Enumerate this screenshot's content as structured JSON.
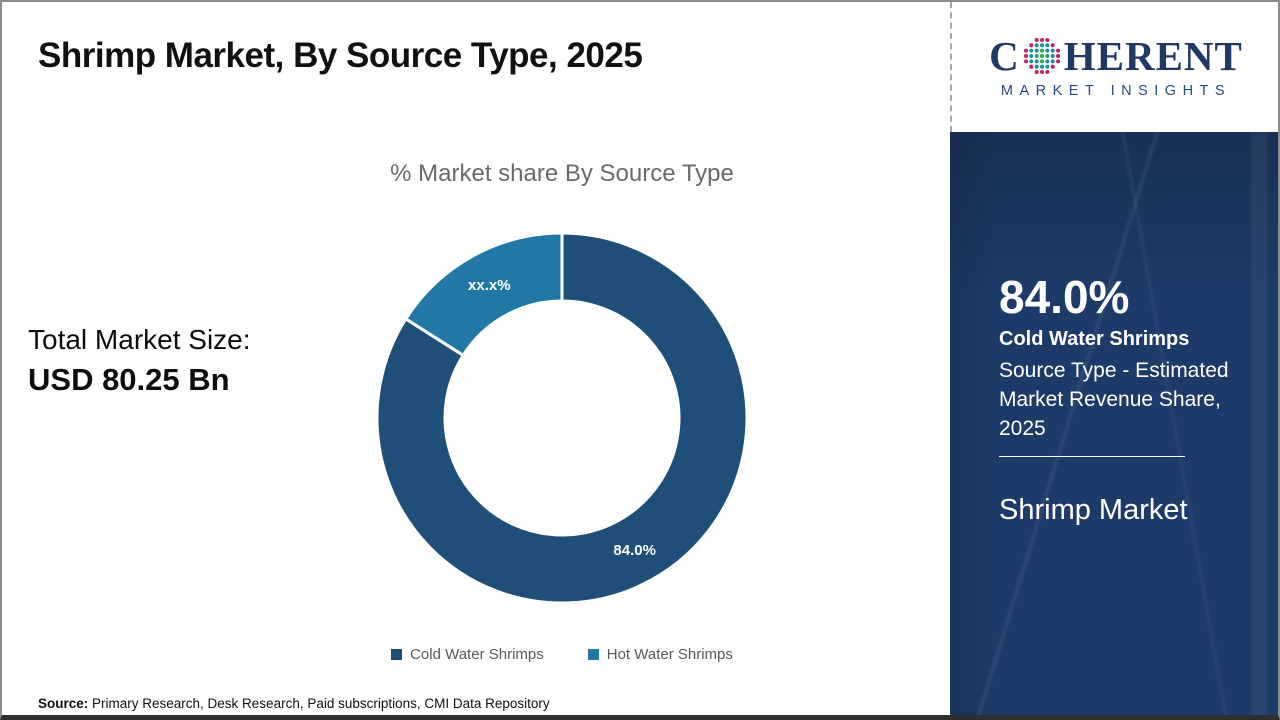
{
  "page": {
    "title": "Shrimp Market, By Source Type, 2025"
  },
  "total_market": {
    "label": "Total Market Size:",
    "value": "USD 80.25 Bn"
  },
  "chart_data": {
    "type": "pie",
    "donut": true,
    "title": "% Market share By Source Type",
    "inner_radius_ratio": 0.63,
    "start_angle_deg": 0,
    "direction": "clockwise",
    "legend_position": "bottom",
    "segments": [
      {
        "label": "Cold Water Shrimps",
        "value": 84.0,
        "display": "84.0%",
        "color": "#1F4E79"
      },
      {
        "label": "Hot Water Shrimps",
        "value": 16.0,
        "display": "xx.x%",
        "color": "#2278A5"
      }
    ]
  },
  "source": {
    "label": "Source:",
    "text": " Primary Research, Desk Research, Paid subscriptions, CMI Data Repository"
  },
  "logo": {
    "part1": "C",
    "part2": "HERENT",
    "subtitle": "MARKET INSIGHTS",
    "globe_icon": "dotted-globe",
    "navy": "#1F3864",
    "dot_colors": {
      "center": "#2FA64D",
      "middle": "#17949B",
      "outer": "#C01E5F"
    }
  },
  "sidebar": {
    "stat_value": "84.0%",
    "stat_label": "Cold Water Shrimps",
    "stat_desc": "Source Type - Estimated Market Revenue Share, 2025",
    "market_name": "Shrimp Market",
    "bg_color": "#1E3A68"
  }
}
